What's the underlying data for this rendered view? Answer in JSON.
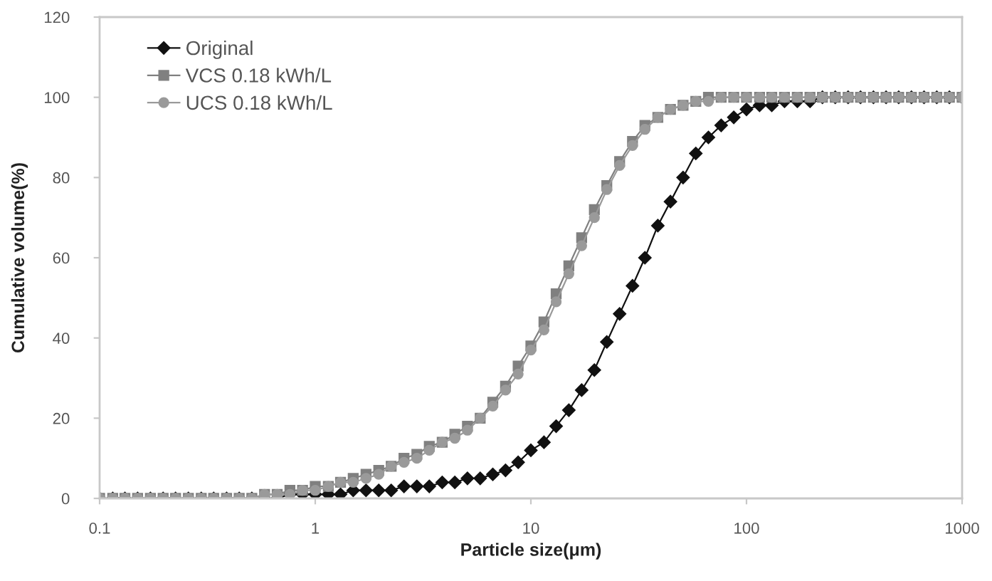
{
  "chart_data": {
    "type": "line",
    "xlabel": "Particle size(μm)",
    "ylabel": "Cumulative volume(%)",
    "x": [
      0.1,
      0.115,
      0.131,
      0.15,
      0.172,
      0.197,
      0.225,
      0.258,
      0.296,
      0.338,
      0.388,
      0.444,
      0.508,
      0.582,
      0.666,
      0.763,
      0.873,
      1,
      1.15,
      1.31,
      1.5,
      1.72,
      1.97,
      2.25,
      2.58,
      2.96,
      3.38,
      3.88,
      4.44,
      5.08,
      5.82,
      6.66,
      7.63,
      8.73,
      10,
      11.5,
      13.1,
      15,
      17.2,
      19.7,
      22.5,
      25.8,
      29.6,
      33.8,
      38.8,
      44.4,
      50.8,
      58.2,
      66.6,
      76.3,
      87.3,
      100,
      115,
      131,
      150,
      172,
      197,
      225,
      258,
      296,
      338,
      388,
      444,
      508,
      582,
      666,
      763,
      873,
      1000
    ],
    "series": [
      {
        "name": "Original",
        "color": "#111111",
        "marker": "diamond",
        "values": [
          0,
          0,
          0,
          0,
          0,
          0,
          0,
          0,
          0,
          0,
          0,
          0,
          0,
          0,
          0,
          1,
          1,
          1,
          1,
          1,
          2,
          2,
          2,
          2,
          3,
          3,
          3,
          4,
          4,
          5,
          5,
          6,
          7,
          9,
          12,
          14,
          18,
          22,
          27,
          32,
          39,
          46,
          53,
          60,
          68,
          74,
          80,
          86,
          90,
          93,
          95,
          97,
          98,
          98,
          99,
          99,
          99,
          100,
          100,
          100,
          100,
          100,
          100,
          100,
          100,
          100,
          100,
          100,
          100
        ]
      },
      {
        "name": "VCS 0.18 kWh/L",
        "color": "#808080",
        "marker": "square",
        "values": [
          0,
          0,
          0,
          0,
          0,
          0,
          0,
          0,
          0,
          0,
          0,
          0,
          0,
          1,
          1,
          2,
          2,
          3,
          3,
          4,
          5,
          6,
          7,
          8,
          10,
          11,
          13,
          14,
          16,
          18,
          20,
          24,
          28,
          33,
          38,
          44,
          51,
          58,
          65,
          72,
          78,
          84,
          89,
          93,
          95,
          97,
          98,
          99,
          100,
          100,
          100,
          100,
          100,
          100,
          100,
          100,
          100,
          100,
          100,
          100,
          100,
          100,
          100,
          100,
          100,
          100,
          100,
          100,
          100
        ]
      },
      {
        "name": "UCS 0.18 kWh/L",
        "color": "#9a9a9a",
        "marker": "circle",
        "values": [
          0,
          0,
          0,
          0,
          0,
          0,
          0,
          0,
          0,
          0,
          0,
          0,
          0,
          1,
          1,
          1,
          2,
          2,
          3,
          4,
          4,
          5,
          6,
          8,
          9,
          10,
          12,
          14,
          15,
          17,
          20,
          23,
          27,
          31,
          37,
          42,
          49,
          56,
          63,
          70,
          77,
          83,
          88,
          92,
          95,
          97,
          98,
          99,
          99,
          100,
          100,
          100,
          100,
          100,
          100,
          100,
          100,
          100,
          100,
          100,
          100,
          100,
          100,
          100,
          100,
          100,
          100,
          100,
          100
        ]
      }
    ],
    "log": "x",
    "xlim": [
      0.1,
      1000
    ],
    "xticks": [
      0.1,
      1,
      10,
      100,
      1000
    ],
    "ylim": [
      0,
      120
    ],
    "yticks": [
      0,
      20,
      40,
      60,
      80,
      100,
      120
    ],
    "legend": "top left",
    "line_style": "solid"
  }
}
